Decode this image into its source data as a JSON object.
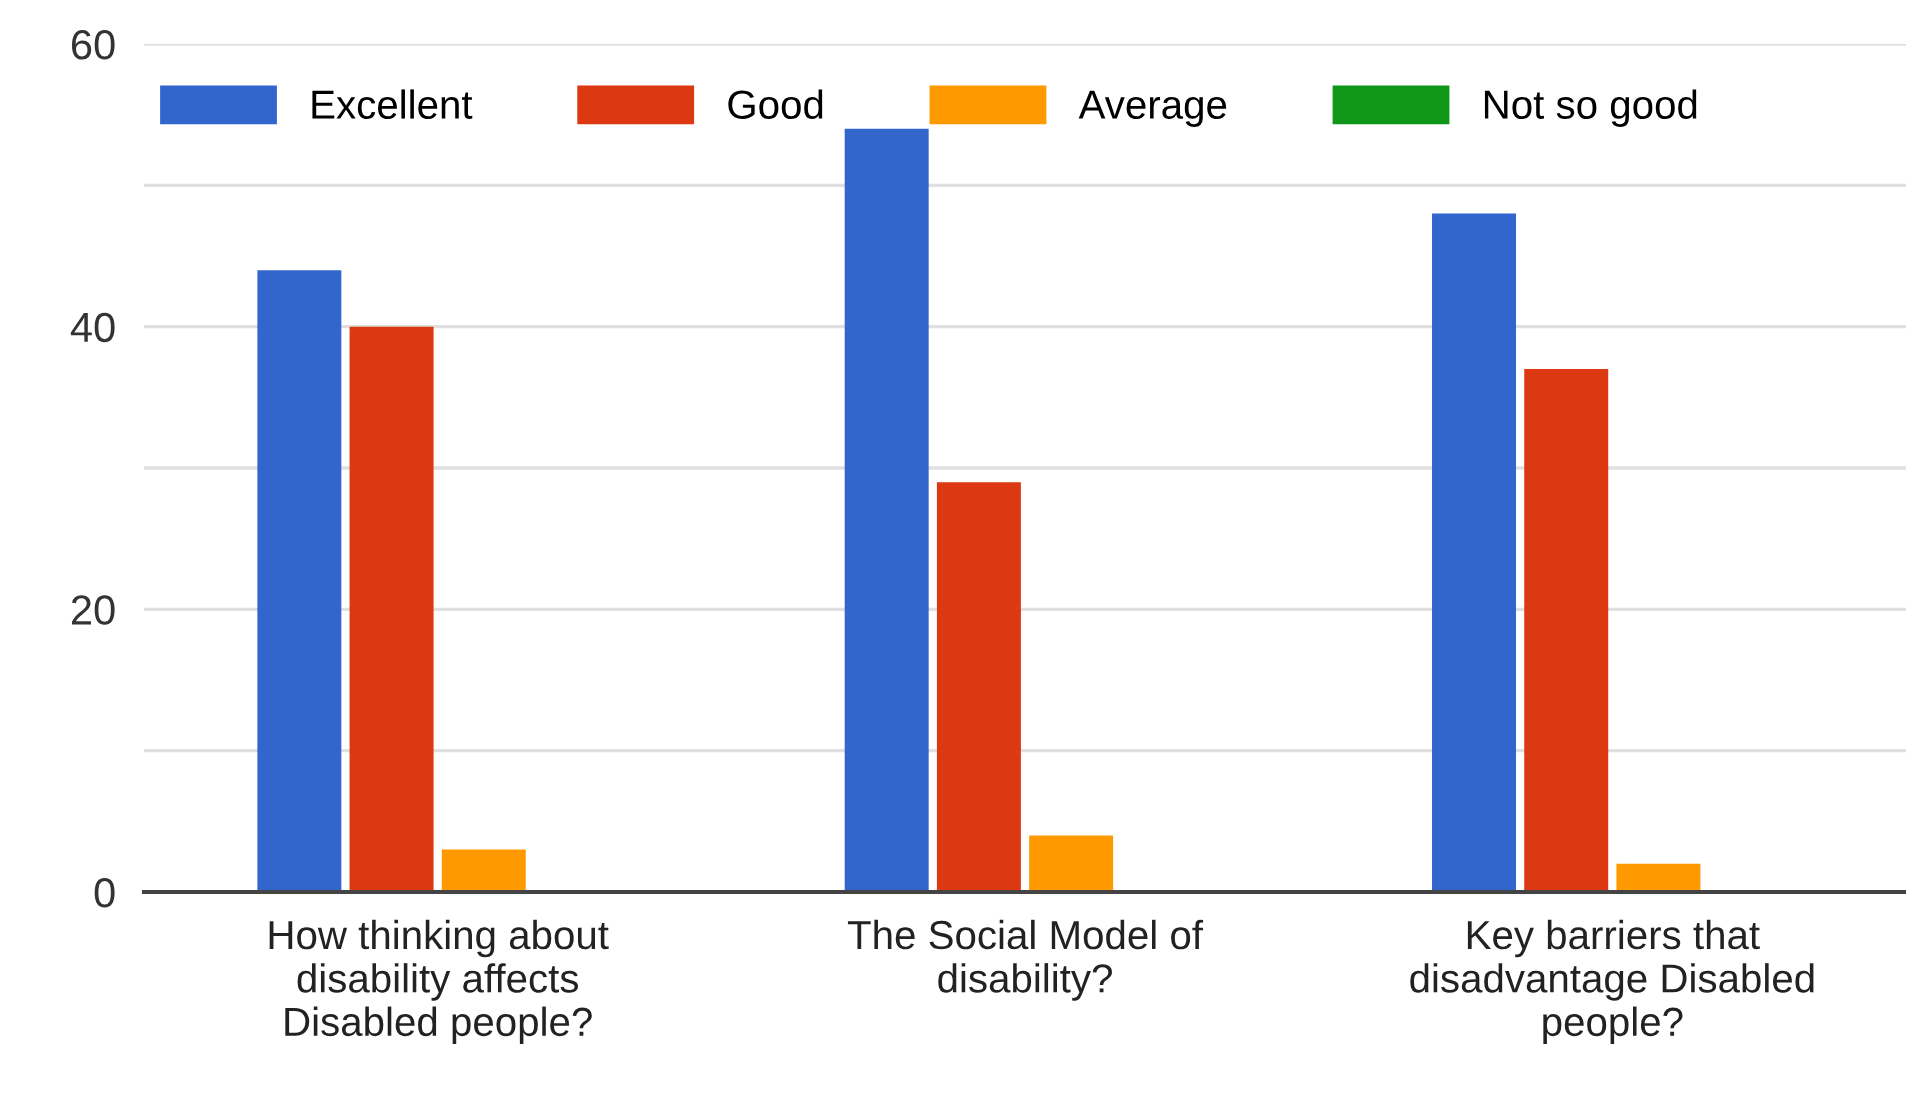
{
  "chart_data": {
    "type": "bar",
    "categories": [
      "How thinking about disability affects Disabled people?",
      "The Social Model of disability?",
      "Key barriers that disadvantage Disabled people?"
    ],
    "series": [
      {
        "name": "Excellent",
        "color": "#3366cc",
        "values": [
          44,
          54,
          48
        ]
      },
      {
        "name": "Good",
        "color": "#dc3912",
        "values": [
          40,
          29,
          37
        ]
      },
      {
        "name": "Average",
        "color": "#ff9900",
        "values": [
          3,
          4,
          2
        ]
      },
      {
        "name": "Not so good",
        "color": "#109618",
        "values": [
          0,
          0,
          0
        ]
      }
    ],
    "ylim": [
      0,
      60
    ],
    "yticks": [
      0,
      {
        "value": 10,
        "label": null
      },
      20,
      {
        "value": 30,
        "label": null
      },
      40,
      {
        "value": 50,
        "label": null
      },
      60
    ],
    "grid": "y",
    "legend": "top"
  }
}
